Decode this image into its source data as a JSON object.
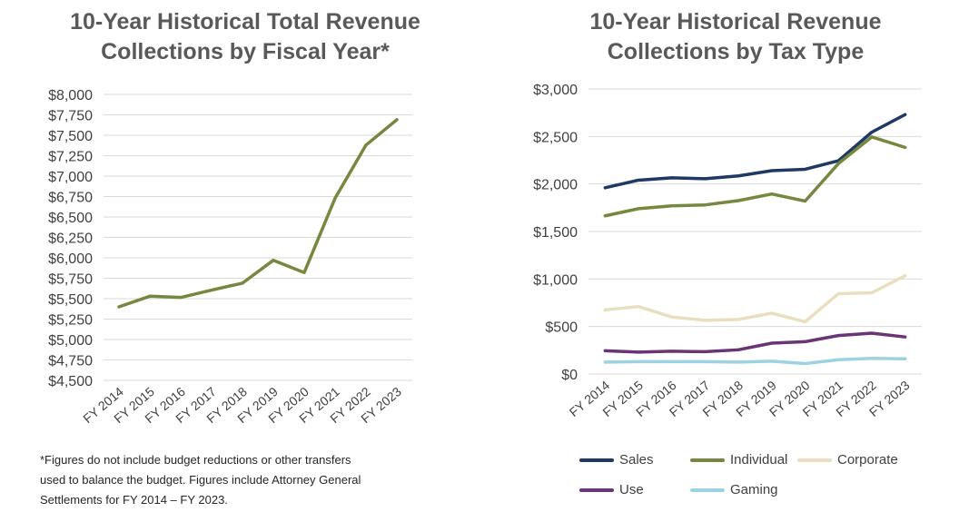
{
  "chart_data": [
    {
      "type": "line",
      "title_lines": [
        "10-Year Historical Total Revenue",
        "Collections by Fiscal Year*"
      ],
      "categories": [
        "FY 2014",
        "FY 2015",
        "FY 2016",
        "FY 2017",
        "FY 2018",
        "FY 2019",
        "FY 2020",
        "FY 2021",
        "FY 2022",
        "FY 2023"
      ],
      "series": [
        {
          "name": "Total Revenue",
          "color": "#76883F",
          "values": [
            5400,
            5530,
            5515,
            5605,
            5690,
            5970,
            5820,
            6730,
            7380,
            7690
          ]
        }
      ],
      "ylim": [
        4500,
        8000
      ],
      "yticks": [
        4500,
        4750,
        5000,
        5250,
        5500,
        5750,
        6000,
        6250,
        6500,
        6750,
        7000,
        7250,
        7500,
        7750,
        8000
      ],
      "ytick_labels": [
        "$4,500",
        "$4,750",
        "$5,000",
        "$5,250",
        "$5,500",
        "$5,750",
        "$6,000",
        "$6,250",
        "$6,500",
        "$6,750",
        "$7,000",
        "$7,250",
        "$7,500",
        "$7,750",
        "$8,000"
      ],
      "grid": true,
      "footnote_lines": [
        "*Figures do not include budget reductions or other transfers",
        "used to balance the budget. Figures include Attorney General",
        "Settlements for FY 2014 – FY 2023."
      ]
    },
    {
      "type": "line",
      "title_lines": [
        "10-Year Historical Revenue",
        "Collections by Tax Type"
      ],
      "categories": [
        "FY 2014",
        "FY 2015",
        "FY 2016",
        "FY 2017",
        "FY 2018",
        "FY 2019",
        "FY 2020",
        "FY 2021",
        "FY 2022",
        "FY 2023"
      ],
      "series": [
        {
          "name": "Sales",
          "color": "#1F3864",
          "values": [
            1960,
            2040,
            2065,
            2055,
            2085,
            2140,
            2155,
            2245,
            2545,
            2730
          ]
        },
        {
          "name": "Individual",
          "color": "#76883F",
          "values": [
            1665,
            1740,
            1770,
            1780,
            1825,
            1895,
            1820,
            2215,
            2495,
            2385
          ]
        },
        {
          "name": "Corporate",
          "color": "#E8DFBF",
          "values": [
            675,
            710,
            600,
            565,
            575,
            640,
            550,
            845,
            855,
            1035
          ]
        },
        {
          "name": "Use",
          "color": "#6A3576",
          "values": [
            245,
            230,
            240,
            235,
            255,
            325,
            340,
            405,
            430,
            390
          ]
        },
        {
          "name": "Gaming",
          "color": "#9DD2E3",
          "values": [
            125,
            130,
            130,
            130,
            125,
            135,
            110,
            150,
            165,
            160
          ]
        }
      ],
      "ylim": [
        0,
        3000
      ],
      "yticks": [
        0,
        500,
        1000,
        1500,
        2000,
        2500,
        3000
      ],
      "ytick_labels": [
        "$0",
        "$500",
        "$1,000",
        "$1,500",
        "$2,000",
        "$2,500",
        "$3,000"
      ],
      "grid": true,
      "legend_position": "bottom"
    }
  ]
}
